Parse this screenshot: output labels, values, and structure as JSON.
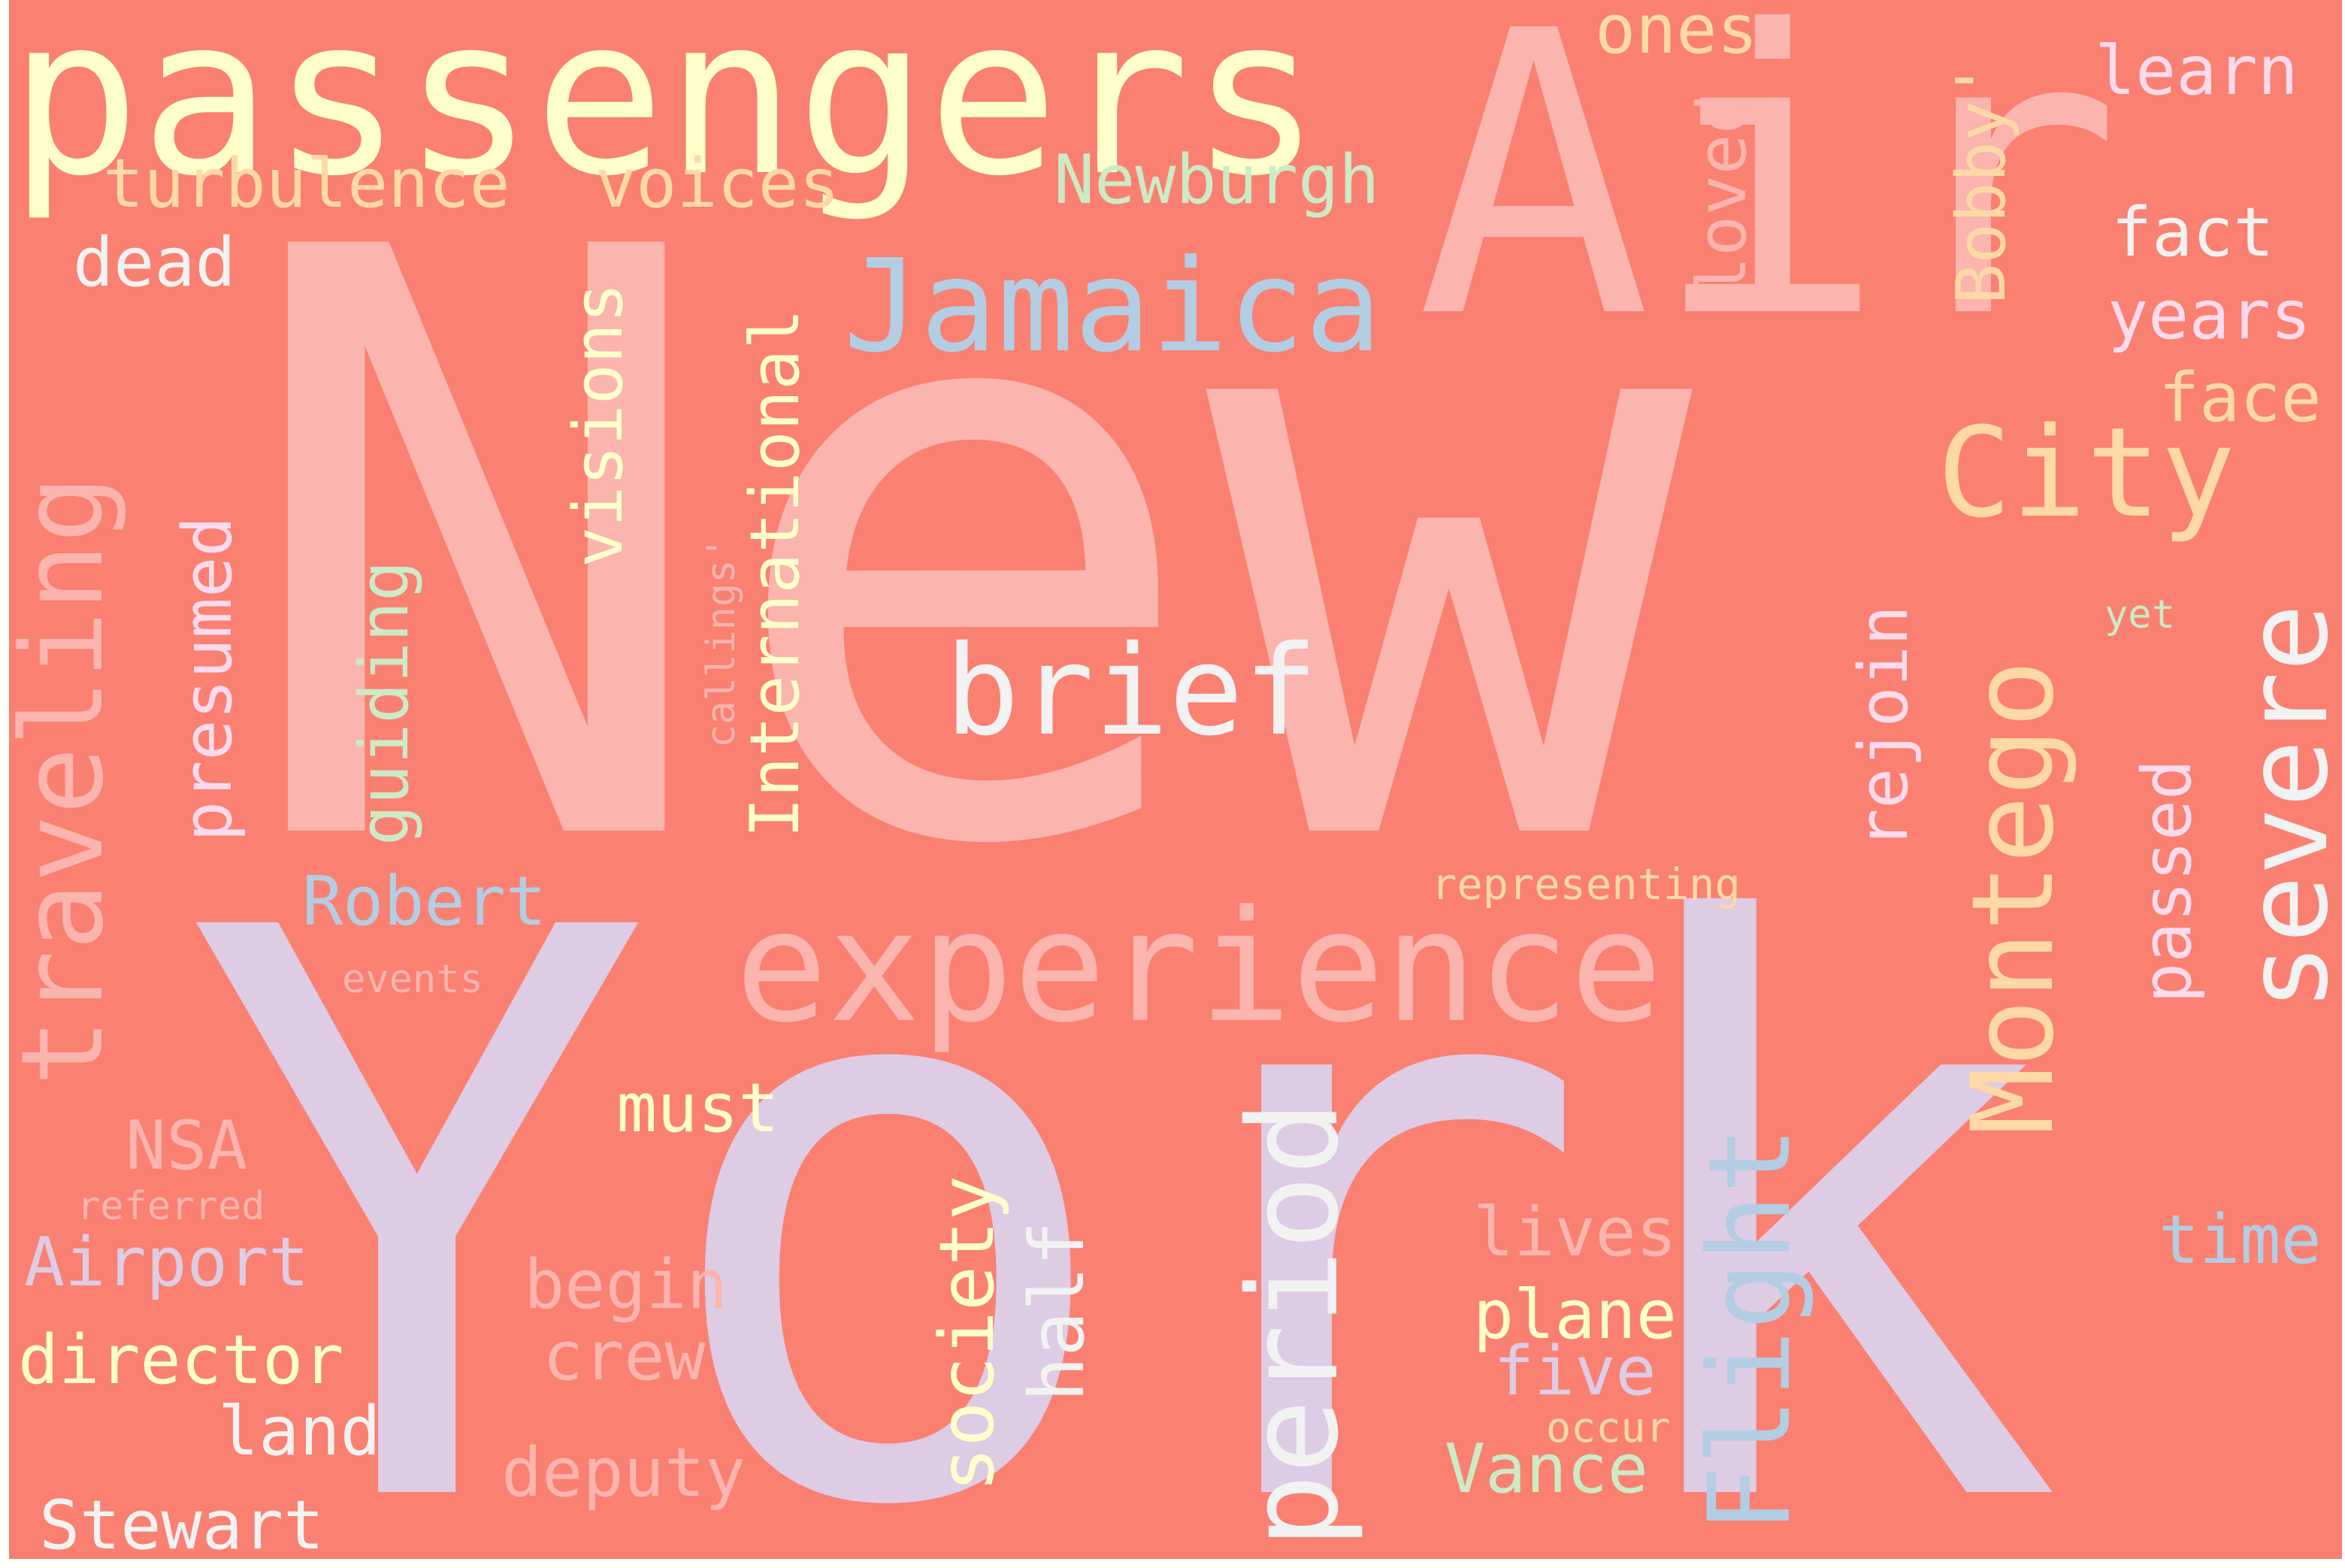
{
  "background": "#FA8072",
  "words": [
    {
      "id": "new",
      "text": "New",
      "color": "#FBB4AE"
    },
    {
      "id": "york",
      "text": "York",
      "color": "#DECBE4"
    },
    {
      "id": "air",
      "text": "Air",
      "color": "#FBB4AE"
    },
    {
      "id": "passengers",
      "text": "passengers",
      "color": "#FFFFCC"
    },
    {
      "id": "experience",
      "text": "experience",
      "color": "#FBB4AE"
    },
    {
      "id": "jamaica",
      "text": "Jamaica",
      "color": "#B3CDE3"
    },
    {
      "id": "brief",
      "text": "brief",
      "color": "#F2F2F2"
    },
    {
      "id": "city",
      "text": "City",
      "color": "#FED9A6"
    },
    {
      "id": "period",
      "text": "period",
      "color": "#F2F2F2"
    },
    {
      "id": "flight",
      "text": "Flight",
      "color": "#B3CDE3"
    },
    {
      "id": "montego",
      "text": "Montego",
      "color": "#FED9A6"
    },
    {
      "id": "severe",
      "text": "severe",
      "color": "#F2F2F2"
    },
    {
      "id": "traveling",
      "text": "traveling",
      "color": "#FBB4AE"
    },
    {
      "id": "turbulence",
      "text": "turbulence",
      "color": "#FED9A6"
    },
    {
      "id": "voices",
      "text": "voices",
      "color": "#FED9A6"
    },
    {
      "id": "newburgh",
      "text": "Newburgh",
      "color": "#CCEBC5"
    },
    {
      "id": "ones",
      "text": "ones",
      "color": "#FED9A6"
    },
    {
      "id": "learn",
      "text": "learn",
      "color": "#FDDAEC"
    },
    {
      "id": "fact",
      "text": "fact",
      "color": "#F2F2F2"
    },
    {
      "id": "years",
      "text": "years",
      "color": "#FDDAEC"
    },
    {
      "id": "face",
      "text": "face",
      "color": "#FED9A6"
    },
    {
      "id": "dead",
      "text": "dead",
      "color": "#F2F2F2"
    },
    {
      "id": "presumed",
      "text": "presumed",
      "color": "#FDDAEC"
    },
    {
      "id": "guiding",
      "text": "guiding",
      "color": "#CCEBC5"
    },
    {
      "id": "visions",
      "text": "visions",
      "color": "#FFFFCC"
    },
    {
      "id": "international",
      "text": "International",
      "color": "#FFFFCC"
    },
    {
      "id": "callings",
      "text": "callings'",
      "color": "#FBB4AE"
    },
    {
      "id": "loved",
      "text": "loved",
      "color": "#FBB4AE"
    },
    {
      "id": "bobby",
      "text": "Bobby'",
      "color": "#FED9A6"
    },
    {
      "id": "robert",
      "text": "Robert",
      "color": "#B3CDE3"
    },
    {
      "id": "events",
      "text": "events",
      "color": "#FBB4AE"
    },
    {
      "id": "representing",
      "text": "representing",
      "color": "#FED9A6"
    },
    {
      "id": "rejoin",
      "text": "rejoin",
      "color": "#FDDAEC"
    },
    {
      "id": "passed",
      "text": "passed",
      "color": "#FDDAEC"
    },
    {
      "id": "yet",
      "text": "yet",
      "color": "#CCEBC5"
    },
    {
      "id": "must",
      "text": "must",
      "color": "#FFFFCC"
    },
    {
      "id": "nsa",
      "text": "NSA",
      "color": "#FBB4AE"
    },
    {
      "id": "referred",
      "text": "referred",
      "color": "#FBB4AE"
    },
    {
      "id": "airport",
      "text": "Airport",
      "color": "#DECBE4"
    },
    {
      "id": "director",
      "text": "director",
      "color": "#FFFFCC"
    },
    {
      "id": "land",
      "text": "land",
      "color": "#F2F2F2"
    },
    {
      "id": "stewart",
      "text": "Stewart",
      "color": "#F2F2F2"
    },
    {
      "id": "begin",
      "text": "begin",
      "color": "#FBB4AE"
    },
    {
      "id": "crew",
      "text": "crew",
      "color": "#FBB4AE"
    },
    {
      "id": "deputy",
      "text": "deputy",
      "color": "#FBB4AE"
    },
    {
      "id": "society",
      "text": "society",
      "color": "#FFFFCC"
    },
    {
      "id": "half",
      "text": "half",
      "color": "#F2F2F2"
    },
    {
      "id": "lives",
      "text": "lives",
      "color": "#FBB4AE"
    },
    {
      "id": "plane",
      "text": "plane",
      "color": "#FFFFCC"
    },
    {
      "id": "five",
      "text": "five",
      "color": "#DECBE4"
    },
    {
      "id": "occur",
      "text": "occur",
      "color": "#FED9A6"
    },
    {
      "id": "vance",
      "text": "Vance",
      "color": "#CCEBC5"
    },
    {
      "id": "time",
      "text": "time",
      "color": "#B3CDE3"
    }
  ]
}
